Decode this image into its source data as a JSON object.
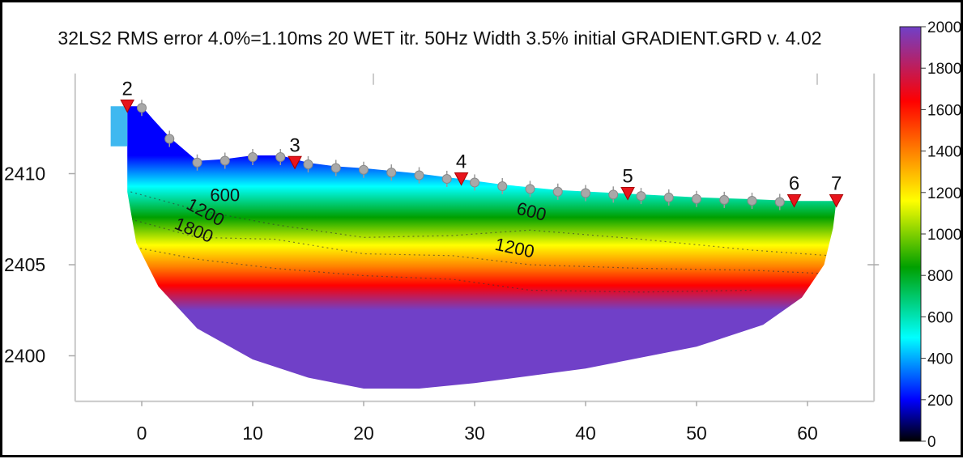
{
  "chart_data": {
    "type": "heatmap",
    "title": "32LS2 RMS error 4.0%=1.10ms 20 WET itr. 50Hz Width 3.5% initial GRADIENT.GRD v. 4.02",
    "xlabel": "",
    "ylabel": "",
    "xlim": [
      -6,
      66
    ],
    "ylim": [
      2397.5,
      2415.5
    ],
    "x_ticks": [
      "0",
      "10",
      "20",
      "30",
      "40",
      "50",
      "60"
    ],
    "y_ticks": [
      "2400",
      "2405",
      "2410"
    ],
    "colorbar": {
      "min": 0,
      "max": 2000,
      "ticks": [
        "0",
        "200",
        "400",
        "600",
        "800",
        "1000",
        "1200",
        "1400",
        "1600",
        "1800",
        "2000"
      ],
      "colors": [
        "#000000",
        "#0000ff",
        "#00ffff",
        "#00a000",
        "#ffff00",
        "#ff8000",
        "#ff0000",
        "#7040c8"
      ]
    },
    "contours": [
      {
        "label": "600",
        "value": 600
      },
      {
        "label": "1200",
        "value": 1200
      },
      {
        "label": "1800",
        "value": 1800
      },
      {
        "label": "600",
        "value": 600
      },
      {
        "label": "1200",
        "value": 1200
      }
    ],
    "shots": [
      {
        "label": "2",
        "x": -1.3,
        "elev": 2413.6
      },
      {
        "label": "3",
        "x": 13.8,
        "elev": 2410.5
      },
      {
        "label": "4",
        "x": 28.8,
        "elev": 2409.6
      },
      {
        "label": "5",
        "x": 43.8,
        "elev": 2408.8
      },
      {
        "label": "6",
        "x": 58.8,
        "elev": 2408.4
      },
      {
        "label": "7",
        "x": 62.6,
        "elev": 2408.4
      }
    ],
    "geophones_x": [
      0,
      2.5,
      5,
      7.5,
      10,
      12.5,
      15,
      17.5,
      20,
      22.5,
      25,
      27.5,
      30,
      32.5,
      35,
      37.5,
      40,
      42.5,
      45,
      47.5,
      50,
      52.5,
      55,
      57.5
    ]
  }
}
